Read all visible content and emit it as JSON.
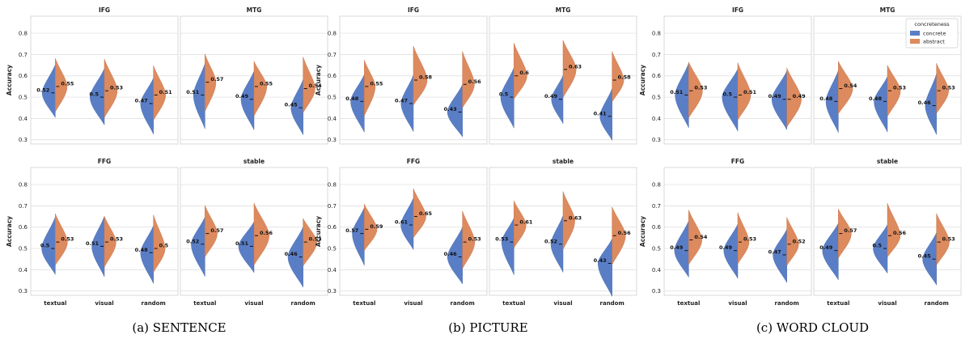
{
  "colors": {
    "concrete": "#5a7ec6",
    "abstract": "#dd8a5e",
    "grid": "#dcdcdc",
    "frame": "#cfcfcf",
    "text": "#222222"
  },
  "ylabel": "Accuracy",
  "categories": [
    "textual",
    "visual",
    "random"
  ],
  "yticks": [
    "0.3",
    "0.4",
    "0.5",
    "0.6",
    "0.7",
    "0.8"
  ],
  "legend": {
    "title": "concreteness",
    "items": [
      "concrete",
      "abstract"
    ]
  },
  "chart_data": [
    {
      "type": "violin",
      "caption": "(a) SENTENCE",
      "ylim": [
        0.28,
        0.88
      ],
      "panels": [
        {
          "title": "IFG",
          "row": 0,
          "col": 0,
          "concrete": [
            0.52,
            0.5,
            0.47
          ],
          "abstract": [
            0.55,
            0.53,
            0.51
          ]
        },
        {
          "title": "MTG",
          "row": 0,
          "col": 1,
          "concrete": [
            0.51,
            0.49,
            0.45
          ],
          "abstract": [
            0.57,
            0.55,
            0.54
          ]
        },
        {
          "title": "FFG",
          "row": 1,
          "col": 0,
          "concrete": [
            0.5,
            0.51,
            0.48
          ],
          "abstract": [
            0.53,
            0.53,
            0.5
          ]
        },
        {
          "title": "stable",
          "row": 1,
          "col": 1,
          "concrete": [
            0.52,
            0.51,
            0.46
          ],
          "abstract": [
            0.57,
            0.56,
            0.53
          ]
        }
      ]
    },
    {
      "type": "violin",
      "caption": "(b) PICTURE",
      "ylim": [
        0.28,
        0.88
      ],
      "panels": [
        {
          "title": "IFG",
          "row": 0,
          "col": 0,
          "concrete": [
            0.48,
            0.47,
            0.43
          ],
          "abstract": [
            0.55,
            0.58,
            0.56
          ]
        },
        {
          "title": "MTG",
          "row": 0,
          "col": 1,
          "concrete": [
            0.5,
            0.49,
            0.41
          ],
          "abstract": [
            0.6,
            0.63,
            0.58
          ]
        },
        {
          "title": "FFG",
          "row": 1,
          "col": 0,
          "concrete": [
            0.57,
            0.61,
            0.46
          ],
          "abstract": [
            0.59,
            0.65,
            0.53
          ]
        },
        {
          "title": "stable",
          "row": 1,
          "col": 1,
          "concrete": [
            0.53,
            0.52,
            0.43
          ],
          "abstract": [
            0.61,
            0.63,
            0.56
          ]
        }
      ]
    },
    {
      "type": "violin",
      "caption": "(c) WORD CLOUD",
      "ylim": [
        0.28,
        0.88
      ],
      "panels": [
        {
          "title": "IFG",
          "row": 0,
          "col": 0,
          "concrete": [
            0.51,
            0.5,
            0.49
          ],
          "abstract": [
            0.53,
            0.51,
            0.49
          ]
        },
        {
          "title": "MTG",
          "row": 0,
          "col": 1,
          "concrete": [
            0.48,
            0.48,
            0.46
          ],
          "abstract": [
            0.54,
            0.53,
            0.53
          ]
        },
        {
          "title": "FFG",
          "row": 1,
          "col": 0,
          "concrete": [
            0.49,
            0.49,
            0.47
          ],
          "abstract": [
            0.54,
            0.53,
            0.52
          ]
        },
        {
          "title": "stable",
          "row": 1,
          "col": 1,
          "concrete": [
            0.49,
            0.5,
            0.45
          ],
          "abstract": [
            0.57,
            0.56,
            0.53
          ]
        }
      ]
    }
  ]
}
